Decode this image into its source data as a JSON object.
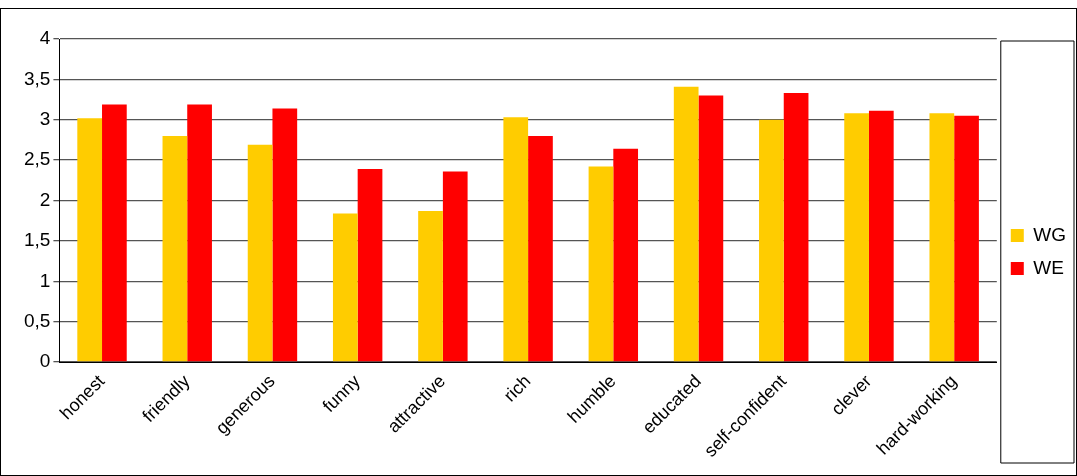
{
  "chart_data": {
    "type": "bar",
    "categories": [
      "honest",
      "friendly",
      "generous",
      "funny",
      "attractive",
      "rich",
      "humble",
      "educated",
      "self-confident",
      "clever",
      "hard-working"
    ],
    "series": [
      {
        "name": "WG",
        "color": "#ffcc00",
        "values": [
          3.02,
          2.8,
          2.69,
          1.84,
          1.87,
          3.03,
          2.42,
          3.41,
          3.0,
          3.08,
          3.08
        ]
      },
      {
        "name": "WE",
        "color": "#ff0000",
        "values": [
          3.19,
          3.19,
          3.14,
          2.39,
          2.36,
          2.8,
          2.64,
          3.3,
          3.33,
          3.11,
          3.05
        ]
      }
    ],
    "ylim": [
      0,
      4
    ],
    "yticks": [
      0,
      {
        "value": 0.5,
        "label": "0,5"
      },
      1,
      {
        "value": 1.5,
        "label": "1,5"
      },
      2,
      {
        "value": 2.5,
        "label": "2,5"
      },
      3,
      {
        "value": 3.5,
        "label": "3,5"
      },
      4
    ],
    "grid": "y",
    "legend": "right"
  }
}
